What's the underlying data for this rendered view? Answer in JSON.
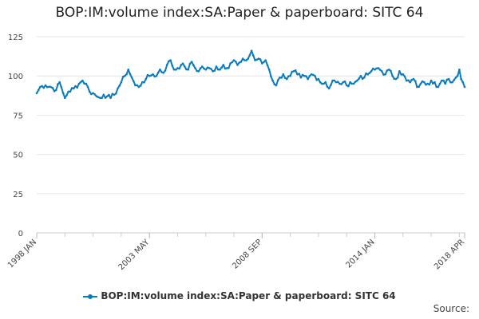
{
  "chart_data": {
    "type": "line",
    "title": "BOP:IM:volume index:SA:Paper & paperboard: SITC 64",
    "xlabel": "",
    "ylabel": "",
    "ylim": [
      0,
      125
    ],
    "yticks": [
      0,
      25,
      50,
      75,
      100,
      125
    ],
    "x_tick_labels": [
      "1998 JAN",
      "2003 MAY",
      "2008 SEP",
      "2014 JAN",
      "2018 APR"
    ],
    "x_tick_months": [
      0,
      64,
      128,
      192,
      243
    ],
    "grid": true,
    "legend_position": "bottom",
    "series": [
      {
        "name": "BOP:IM:volume index:SA:Paper & paperboard: SITC 64",
        "color": "#0a7bbf",
        "start": "1998 JAN",
        "end": "2018 APR",
        "frequency": "monthly",
        "keypoints": [
          [
            0,
            89
          ],
          [
            2,
            93
          ],
          [
            5,
            94
          ],
          [
            8,
            93
          ],
          [
            11,
            91
          ],
          [
            13,
            96
          ],
          [
            15,
            89
          ],
          [
            16,
            86
          ],
          [
            18,
            90
          ],
          [
            21,
            92
          ],
          [
            24,
            95
          ],
          [
            26,
            97
          ],
          [
            28,
            95
          ],
          [
            30,
            90
          ],
          [
            32,
            89
          ],
          [
            34,
            87
          ],
          [
            36,
            86
          ],
          [
            38,
            88
          ],
          [
            40,
            87
          ],
          [
            42,
            86
          ],
          [
            44,
            88
          ],
          [
            46,
            92
          ],
          [
            48,
            96
          ],
          [
            50,
            100
          ],
          [
            52,
            104
          ],
          [
            54,
            99
          ],
          [
            56,
            94
          ],
          [
            58,
            93
          ],
          [
            60,
            96
          ],
          [
            62,
            98
          ],
          [
            64,
            100
          ],
          [
            66,
            101
          ],
          [
            68,
            100
          ],
          [
            70,
            104
          ],
          [
            72,
            102
          ],
          [
            74,
            107
          ],
          [
            76,
            110
          ],
          [
            78,
            104
          ],
          [
            80,
            105
          ],
          [
            82,
            107
          ],
          [
            84,
            106
          ],
          [
            86,
            104
          ],
          [
            88,
            109
          ],
          [
            90,
            105
          ],
          [
            92,
            103
          ],
          [
            94,
            106
          ],
          [
            96,
            104
          ],
          [
            98,
            105
          ],
          [
            100,
            103
          ],
          [
            102,
            106
          ],
          [
            104,
            104
          ],
          [
            106,
            107
          ],
          [
            108,
            105
          ],
          [
            110,
            108
          ],
          [
            112,
            110
          ],
          [
            114,
            107
          ],
          [
            116,
            109
          ],
          [
            118,
            110
          ],
          [
            120,
            111
          ],
          [
            122,
            116
          ],
          [
            124,
            110
          ],
          [
            126,
            111
          ],
          [
            128,
            108
          ],
          [
            130,
            110
          ],
          [
            132,
            104
          ],
          [
            134,
            97
          ],
          [
            136,
            94
          ],
          [
            138,
            99
          ],
          [
            140,
            101
          ],
          [
            142,
            98
          ],
          [
            144,
            100
          ],
          [
            146,
            103
          ],
          [
            148,
            101
          ],
          [
            150,
            99
          ],
          [
            152,
            100
          ],
          [
            154,
            98
          ],
          [
            156,
            101
          ],
          [
            158,
            100
          ],
          [
            160,
            98
          ],
          [
            162,
            95
          ],
          [
            164,
            96
          ],
          [
            166,
            92
          ],
          [
            168,
            97
          ],
          [
            170,
            96
          ],
          [
            172,
            95
          ],
          [
            174,
            96
          ],
          [
            176,
            94
          ],
          [
            178,
            96
          ],
          [
            180,
            95
          ],
          [
            182,
            97
          ],
          [
            184,
            100
          ],
          [
            186,
            99
          ],
          [
            188,
            101
          ],
          [
            190,
            103
          ],
          [
            192,
            104
          ],
          [
            194,
            105
          ],
          [
            196,
            103
          ],
          [
            198,
            101
          ],
          [
            200,
            104
          ],
          [
            202,
            100
          ],
          [
            204,
            98
          ],
          [
            206,
            103
          ],
          [
            208,
            101
          ],
          [
            210,
            97
          ],
          [
            212,
            96
          ],
          [
            214,
            98
          ],
          [
            216,
            93
          ],
          [
            218,
            95
          ],
          [
            220,
            96
          ],
          [
            222,
            95
          ],
          [
            224,
            97
          ],
          [
            226,
            96
          ],
          [
            228,
            93
          ],
          [
            230,
            97
          ],
          [
            232,
            95
          ],
          [
            234,
            98
          ],
          [
            236,
            96
          ],
          [
            238,
            99
          ],
          [
            240,
            104
          ],
          [
            241,
            98
          ],
          [
            242,
            96
          ],
          [
            243,
            93
          ]
        ]
      }
    ]
  },
  "footer": {
    "source_label": "Source:"
  }
}
